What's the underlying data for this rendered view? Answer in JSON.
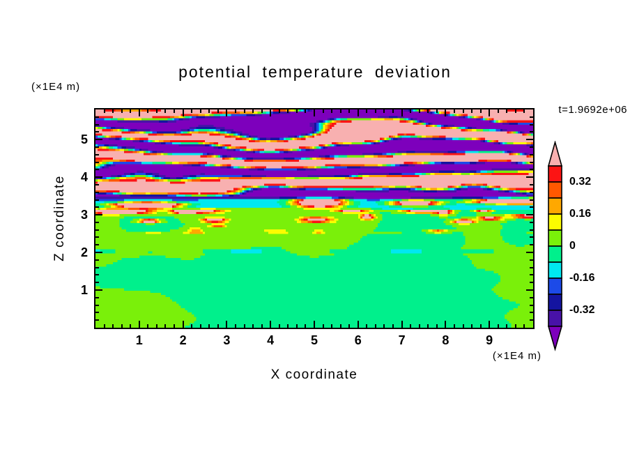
{
  "title": "potential temperature deviation",
  "time_label": "t=1.9692e+06",
  "axes": {
    "x": {
      "label": "X coordinate",
      "unit": "(×1E4 m)",
      "min": 0,
      "max": 10,
      "major_ticks": [
        1,
        2,
        3,
        4,
        5,
        6,
        7,
        8,
        9
      ],
      "minor_step": 0.2
    },
    "z": {
      "label": "Z coordinate",
      "unit": "(×1E4 m)",
      "min": 0,
      "max": 5.8,
      "major_ticks": [
        1,
        2,
        3,
        4,
        5
      ],
      "minor_step": 0.2
    }
  },
  "colorbar": {
    "tick_labels": [
      "0.32",
      "0.16",
      "0",
      "-0.16",
      "-0.32"
    ],
    "levels": [
      -0.4,
      -0.32,
      -0.24,
      -0.16,
      -0.08,
      0,
      0.08,
      0.16,
      0.24,
      0.32,
      0.4
    ],
    "colors_low_to_high": [
      "#7d00bc",
      "#4812a8",
      "#1414a0",
      "#1c4ae8",
      "#00e8f0",
      "#00f08c",
      "#7af00a",
      "#fcfc00",
      "#ffa800",
      "#ff5800",
      "#fc1414",
      "#f8b0b0"
    ]
  },
  "chart_data": {
    "type": "heatmap",
    "title": "potential temperature deviation",
    "xlabel": "X coordinate (×1E4 m)",
    "ylabel": "Z coordinate (×1E4 m)",
    "x_range": [
      0,
      10
    ],
    "z_range": [
      0,
      5.8
    ],
    "time_annotation": "t=1.9692e+06",
    "contour_levels": [
      -0.4,
      -0.32,
      -0.24,
      -0.16,
      -0.08,
      0,
      0.08,
      0.16,
      0.24,
      0.32,
      0.4
    ],
    "labeled_levels": [
      0.32,
      0.16,
      0,
      -0.16,
      -0.32
    ],
    "palette_low_to_high": [
      "#7d00bc",
      "#4812a8",
      "#1414a0",
      "#1c4ae8",
      "#00e8f0",
      "#00f08c",
      "#7af00a",
      "#fcfc00",
      "#ffa800",
      "#ff5800",
      "#fc1414",
      "#f8b0b0"
    ],
    "regions": [
      {
        "name": "stratified-wave-layer",
        "z_span": [
          3.5,
          5.8
        ],
        "values": "horizontally elongated wavy bands alternating beyond +0.4 (pink) and below -0.4 (violet), thin rainbow fringes (red/orange/yellow/green/cyan/blue/navy) along band boundaries"
      },
      {
        "name": "inversion-band",
        "z_span": [
          3.2,
          3.5
        ],
        "values": "uniform ≈ -0.12 (cyan) pierced by warm plumes exceeding +0.4 (pink cores with red/yellow rims)"
      },
      {
        "name": "convective-mixed-layer",
        "z_span": [
          0,
          3.2
        ],
        "values": "large blobs between -0.08 and +0.08 (spring green / chartreuse), hot spots > +0.4 near z ≈ 2.8–3.1, dashed cool streak ≈ -0.2 (cyan/blue/navy) with warm dots at z ≈ 2.0"
      }
    ],
    "render": {
      "seed": 1337,
      "grid": [
        200,
        100
      ],
      "band_wavenumber": 9.0,
      "band_amplitude": 0.55,
      "band_sharpness": 1.9,
      "band_phase_noise": 7.8,
      "cyan_band_value": -0.12,
      "cyan_band_bottom": 3.16,
      "cyan_band_top": 3.46,
      "mixed_layer_amp": 0.17,
      "small_spots": 15,
      "tongue_spots": 7,
      "line_spots": 5,
      "weak_spots": 6
    }
  }
}
